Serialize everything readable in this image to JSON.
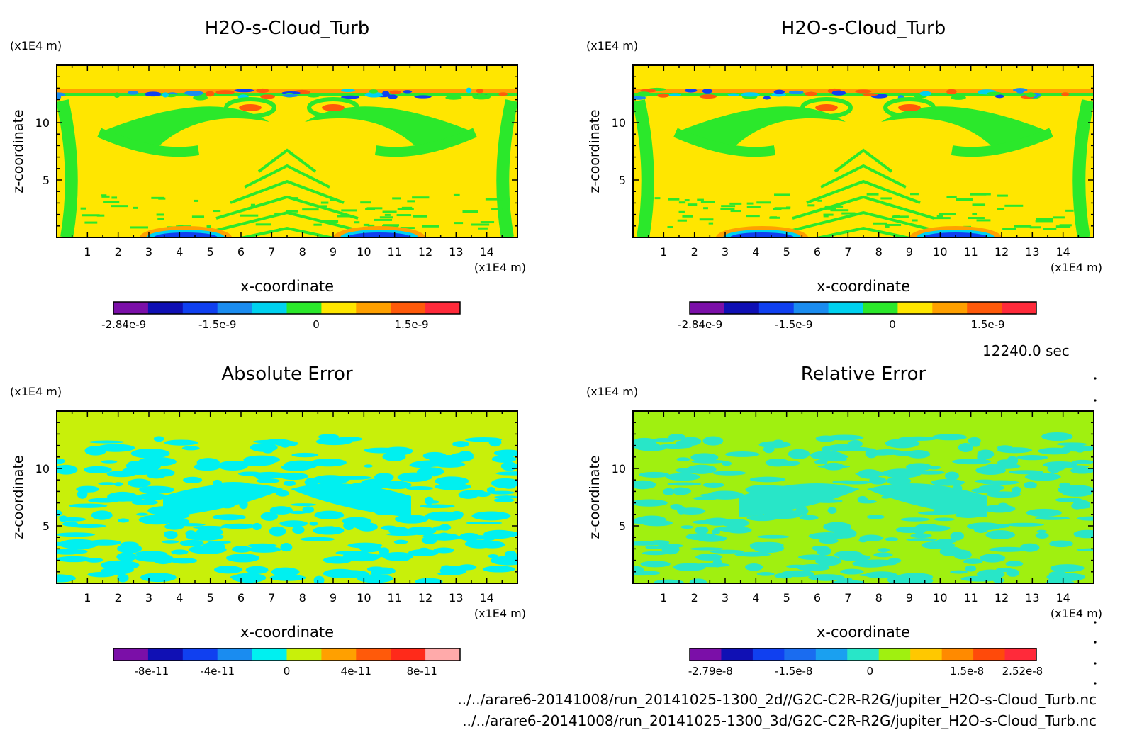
{
  "time_label": "12240.0 sec",
  "file_paths": [
    "../../arare6-20141008/run_20141025-1300_2d//G2C-C2R-R2G/jupiter_H2O-s-Cloud_Turb.nc",
    "../../arare6-20141008/run_20141025-1300_3d/G2C-C2R-R2G/jupiter_H2O-s-Cloud_Turb.nc"
  ],
  "chart_data": [
    {
      "type": "heatmap",
      "title": "H2O-s-Cloud_Turb",
      "xlabel": "x-coordinate",
      "ylabel": "z-coordinate",
      "x_unit": "(x1E4 m)",
      "y_unit": "(x1E4 m)",
      "xlim": [
        0,
        15
      ],
      "ylim": [
        0,
        15
      ],
      "xticks": [
        "1",
        "2",
        "3",
        "4",
        "5",
        "6",
        "7",
        "8",
        "9",
        "10",
        "11",
        "12",
        "13",
        "14"
      ],
      "yticks": [
        "5",
        "10"
      ],
      "background_color": "#ffe600",
      "colorbar": {
        "colors": [
          "#7b0fa8",
          "#1010b4",
          "#1040f0",
          "#1a8cf0",
          "#00d2f0",
          "#2be82b",
          "#ffe600",
          "#ffa000",
          "#ff5a0a",
          "#ff2a3a"
        ],
        "tick_labels": [
          "-2.84e-9",
          "-1.5e-9",
          "0",
          "1.5e-9"
        ]
      }
    },
    {
      "type": "heatmap",
      "title": "H2O-s-Cloud_Turb",
      "xlabel": "x-coordinate",
      "ylabel": "z-coordinate",
      "x_unit": "(x1E4 m)",
      "y_unit": "(x1E4 m)",
      "xlim": [
        0,
        15
      ],
      "ylim": [
        0,
        15
      ],
      "xticks": [
        "1",
        "2",
        "3",
        "4",
        "5",
        "6",
        "7",
        "8",
        "9",
        "10",
        "11",
        "12",
        "13",
        "14"
      ],
      "yticks": [
        "5",
        "10"
      ],
      "background_color": "#ffe600",
      "colorbar": {
        "colors": [
          "#7b0fa8",
          "#1010b4",
          "#1040f0",
          "#1a8cf0",
          "#00d2f0",
          "#2be82b",
          "#ffe600",
          "#ffa000",
          "#ff5a0a",
          "#ff2a3a"
        ],
        "tick_labels": [
          "-2.84e-9",
          "-1.5e-9",
          "0",
          "1.5e-9"
        ]
      }
    },
    {
      "type": "heatmap",
      "title": "Absolute Error",
      "xlabel": "x-coordinate",
      "ylabel": "z-coordinate",
      "x_unit": "(x1E4 m)",
      "y_unit": "(x1E4 m)",
      "xlim": [
        0,
        15
      ],
      "ylim": [
        0,
        15
      ],
      "xticks": [
        "1",
        "2",
        "3",
        "4",
        "5",
        "6",
        "7",
        "8",
        "9",
        "10",
        "11",
        "12",
        "13",
        "14"
      ],
      "yticks": [
        "5",
        "10"
      ],
      "background_color": "#c8f00a",
      "colorbar": {
        "colors": [
          "#7b0fa8",
          "#1010b4",
          "#1040f0",
          "#1a8cf0",
          "#00f0f0",
          "#c8f00a",
          "#ffa000",
          "#ff5a0a",
          "#ff2a1a",
          "#ffaaaa"
        ],
        "tick_labels": [
          "-8e-11",
          "-4e-11",
          "0",
          "4e-11",
          "8e-11"
        ]
      }
    },
    {
      "type": "heatmap",
      "title": "Relative Error",
      "xlabel": "x-coordinate",
      "ylabel": "z-coordinate",
      "x_unit": "(x1E4 m)",
      "y_unit": "(x1E4 m)",
      "xlim": [
        0,
        15
      ],
      "ylim": [
        0,
        15
      ],
      "xticks": [
        "1",
        "2",
        "3",
        "4",
        "5",
        "6",
        "7",
        "8",
        "9",
        "10",
        "11",
        "12",
        "13",
        "14"
      ],
      "yticks": [
        "5",
        "10"
      ],
      "background_color": "#a0f010",
      "colorbar": {
        "colors": [
          "#7b0fa8",
          "#1010b4",
          "#1040f0",
          "#1a6cf0",
          "#1aa0f0",
          "#28e6c8",
          "#a0f010",
          "#ffc800",
          "#ff8a00",
          "#ff4a0a",
          "#ff2a3a"
        ],
        "tick_labels": [
          "-2.79e-8",
          "-1.5e-8",
          "0",
          "1.5e-8",
          "2.52e-8"
        ]
      }
    }
  ]
}
